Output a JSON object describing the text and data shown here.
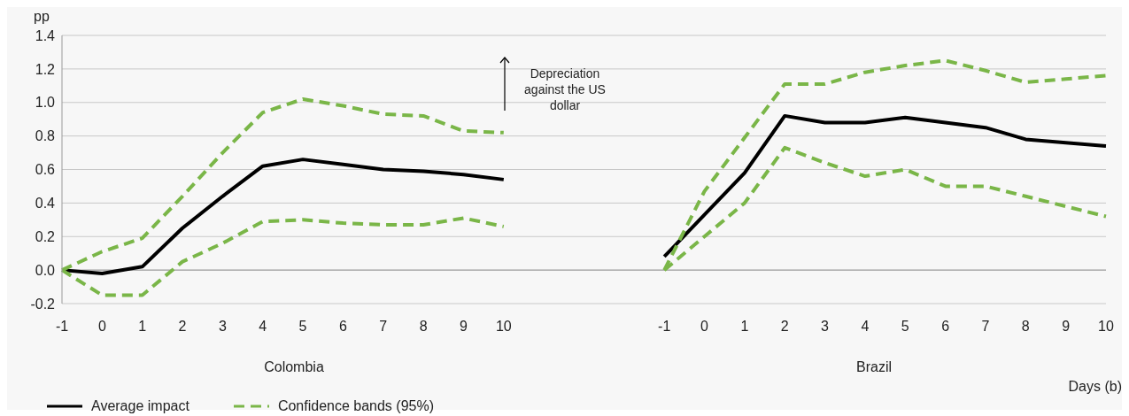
{
  "chart_data": {
    "type": "line",
    "ylabel": "pp",
    "xlabel": "Days (b)",
    "categories": [
      "-1",
      "0",
      "1",
      "2",
      "3",
      "4",
      "5",
      "6",
      "7",
      "8",
      "9",
      "10",
      null,
      null,
      null,
      "-1",
      "0",
      "1",
      "2",
      "3",
      "4",
      "5",
      "6",
      "7",
      "8",
      "9",
      "10"
    ],
    "series": [
      {
        "name": "Average impact",
        "color": "#000000",
        "line_style": "solid",
        "values": [
          0,
          -0.02,
          0.02,
          0.25,
          0.44,
          0.62,
          0.66,
          0.63,
          0.6,
          0.59,
          0.57,
          0.54,
          null,
          null,
          null,
          0.08,
          0.33,
          0.58,
          0.92,
          0.88,
          0.88,
          0.91,
          0.88,
          0.85,
          0.78,
          0.76,
          0.74
        ]
      },
      {
        "name": "Confidence bands (95%)",
        "color": "#7ab648",
        "line_style": "dashed",
        "values": [
          0,
          0.11,
          0.19,
          0.44,
          0.7,
          0.94,
          1.02,
          0.98,
          0.93,
          0.92,
          0.83,
          0.82,
          null,
          null,
          null,
          0,
          0.47,
          0.79,
          1.11,
          1.11,
          1.18,
          1.22,
          1.25,
          1.19,
          1.12,
          1.14,
          1.16
        ]
      },
      {
        "color": "#7ab648",
        "line_style": "dashed",
        "values": [
          0,
          -0.15,
          -0.15,
          0.05,
          0.16,
          0.29,
          0.3,
          0.28,
          0.27,
          0.27,
          0.31,
          0.26,
          null,
          null,
          null,
          0,
          0.2,
          0.4,
          0.73,
          0.64,
          0.56,
          0.6,
          0.5,
          0.5,
          0.44,
          0.38,
          0.32
        ]
      }
    ],
    "ylim": [
      -0.2,
      1.4
    ],
    "yticks": [
      -0.2,
      {
        "value": 0,
        "label": "0.0"
      },
      0.2,
      0.4,
      0.6,
      0.8,
      {
        "value": 1,
        "label": "1.0"
      },
      1.2,
      1.4
    ],
    "grid": "y",
    "marker": "none",
    "legend": "bottom left",
    "annotations": [
      "Depreciation against the US dollar",
      "Colombia",
      "Brazil"
    ]
  }
}
